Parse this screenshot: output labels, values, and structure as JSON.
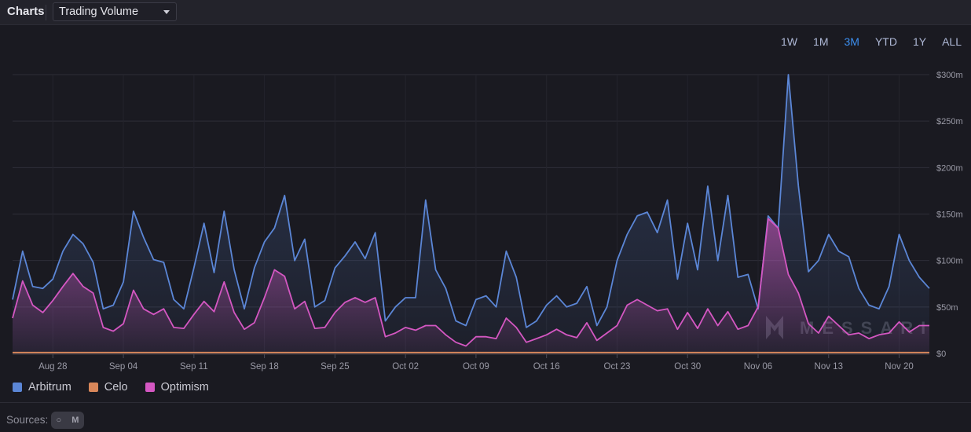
{
  "header": {
    "title": "Charts",
    "metric_selected": "Trading Volume"
  },
  "time_ranges": [
    {
      "label": "1W",
      "active": false
    },
    {
      "label": "1M",
      "active": false
    },
    {
      "label": "3M",
      "active": true
    },
    {
      "label": "YTD",
      "active": false
    },
    {
      "label": "1Y",
      "active": false
    },
    {
      "label": "ALL",
      "active": false
    }
  ],
  "legend": [
    {
      "name": "Arbitrum",
      "color": "#5b86d6"
    },
    {
      "name": "Celo",
      "color": "#d9875a"
    },
    {
      "name": "Optimism",
      "color": "#d457c2"
    }
  ],
  "watermark": "MESSARI",
  "footer": {
    "sources_label": "Sources:"
  },
  "chart_data": {
    "type": "area",
    "ylim": [
      0,
      300
    ],
    "y_ticks": [
      "$0",
      "$50m",
      "$100m",
      "$150m",
      "$200m",
      "$250m",
      "$300m"
    ],
    "y_tick_values": [
      0,
      50,
      100,
      150,
      200,
      250,
      300
    ],
    "x_tick_labels": [
      "Aug 28",
      "Sep 04",
      "Sep 11",
      "Sep 18",
      "Sep 25",
      "Oct 02",
      "Oct 09",
      "Oct 16",
      "Oct 23",
      "Oct 30",
      "Nov 06",
      "Nov 13",
      "Nov 20"
    ],
    "start_date": "Aug 24",
    "grid": true,
    "series": [
      {
        "name": "Arbitrum",
        "color": "#5b86d6",
        "values": [
          58,
          110,
          72,
          70,
          80,
          110,
          128,
          118,
          98,
          48,
          52,
          77,
          153,
          125,
          101,
          98,
          58,
          48,
          92,
          140,
          87,
          153,
          90,
          48,
          92,
          120,
          135,
          170,
          100,
          123,
          50,
          57,
          92,
          105,
          120,
          102,
          130,
          35,
          50,
          60,
          60,
          165,
          90,
          70,
          35,
          30,
          58,
          62,
          50,
          110,
          82,
          28,
          35,
          52,
          62,
          50,
          54,
          72,
          30,
          50,
          100,
          128,
          148,
          152,
          130,
          165,
          80,
          140,
          90,
          180,
          100,
          170,
          82,
          85,
          48,
          148,
          135,
          300,
          180,
          88,
          100,
          128,
          110,
          104,
          70,
          52,
          48,
          72,
          128,
          100,
          82,
          70
        ]
      },
      {
        "name": "Celo",
        "color": "#d9875a",
        "values": [
          1,
          1,
          1,
          1,
          1,
          1,
          1,
          1,
          1,
          1,
          1,
          1,
          1,
          1,
          1,
          1,
          1,
          1,
          1,
          1,
          1,
          1,
          1,
          1,
          1,
          1,
          1,
          1,
          1,
          1,
          1,
          1,
          1,
          1,
          1,
          1,
          1,
          1,
          1,
          1,
          1,
          1,
          1,
          1,
          1,
          1,
          1,
          1,
          1,
          1,
          1,
          1,
          1,
          1,
          1,
          1,
          1,
          1,
          1,
          1,
          1,
          1,
          1,
          1,
          1,
          1,
          1,
          1,
          1,
          1,
          1,
          1,
          1,
          1,
          1,
          1,
          1,
          1,
          1,
          1,
          1,
          1,
          1,
          1,
          1,
          1,
          1,
          1,
          1,
          1,
          1,
          1
        ]
      },
      {
        "name": "Optimism",
        "color": "#d457c2",
        "values": [
          38,
          78,
          52,
          44,
          57,
          72,
          86,
          72,
          65,
          28,
          24,
          32,
          68,
          48,
          42,
          48,
          28,
          27,
          42,
          56,
          45,
          77,
          44,
          26,
          33,
          60,
          90,
          83,
          48,
          56,
          27,
          28,
          44,
          55,
          60,
          55,
          60,
          18,
          22,
          28,
          25,
          30,
          30,
          20,
          12,
          8,
          18,
          18,
          16,
          38,
          28,
          12,
          16,
          20,
          26,
          20,
          17,
          33,
          14,
          22,
          30,
          52,
          58,
          52,
          46,
          48,
          26,
          44,
          27,
          48,
          30,
          45,
          26,
          30,
          50,
          145,
          135,
          85,
          65,
          32,
          22,
          40,
          30,
          20,
          22,
          16,
          20,
          22,
          34,
          23,
          30,
          30
        ]
      }
    ]
  }
}
